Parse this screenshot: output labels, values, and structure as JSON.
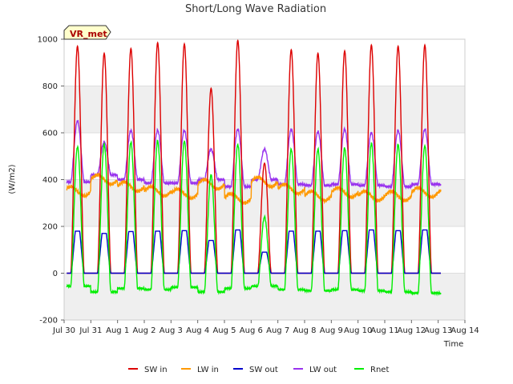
{
  "chart_data": {
    "type": "line",
    "title": "Short/Long Wave Radiation",
    "xlabel": "Time",
    "ylabel": "(W/m2)",
    "ylim": [
      -200,
      1000
    ],
    "xlim": [
      0,
      15
    ],
    "yticks": [
      -200,
      0,
      200,
      400,
      600,
      800,
      1000
    ],
    "xticks": [
      "Jul 30",
      "Jul 31",
      "Aug 1",
      "Aug 2",
      "Aug 3",
      "Aug 4",
      "Aug 5",
      "Aug 6",
      "Aug 7",
      "Aug 8",
      "Aug 9",
      "Aug 10",
      "Aug 11",
      "Aug 12",
      "Aug 13",
      "Aug 14"
    ],
    "grid": true,
    "legend_position": "bottom",
    "annotation": "VR_met",
    "series": [
      {
        "name": "SW in",
        "color": "#dd0000",
        "days": [
          0.5,
          1.5,
          2.5,
          3.5,
          4.5,
          5.5,
          6.5,
          7.5,
          8.5,
          9.5,
          10.5,
          11.5,
          12.5,
          13.5
        ],
        "peaks": [
          970,
          940,
          960,
          985,
          980,
          790,
          995,
          470,
          955,
          940,
          950,
          975,
          970,
          975
        ]
      },
      {
        "name": "LW in",
        "color": "#ff9900",
        "daily_mean": [
          350,
          400,
          370,
          350,
          340,
          380,
          320,
          390,
          360,
          330,
          345,
          330,
          330,
          345
        ]
      },
      {
        "name": "SW out",
        "color": "#0000cc",
        "peaks": [
          180,
          170,
          178,
          180,
          182,
          140,
          185,
          90,
          180,
          180,
          182,
          185,
          182,
          185
        ]
      },
      {
        "name": "LW out",
        "color": "#9933ee",
        "daily_min": [
          390,
          420,
          400,
          385,
          385,
          400,
          370,
          400,
          380,
          375,
          380,
          375,
          370,
          380
        ],
        "daily_max": [
          650,
          560,
          610,
          610,
          610,
          530,
          615,
          530,
          615,
          605,
          615,
          600,
          610,
          615
        ]
      },
      {
        "name": "Rnet",
        "color": "#00ee00",
        "daily_min": [
          -55,
          -80,
          -65,
          -70,
          -60,
          -80,
          -65,
          -55,
          -70,
          -75,
          -70,
          -75,
          -80,
          -85
        ],
        "daily_max": [
          540,
          550,
          560,
          565,
          565,
          420,
          550,
          240,
          530,
          530,
          535,
          555,
          550,
          545
        ]
      }
    ]
  }
}
